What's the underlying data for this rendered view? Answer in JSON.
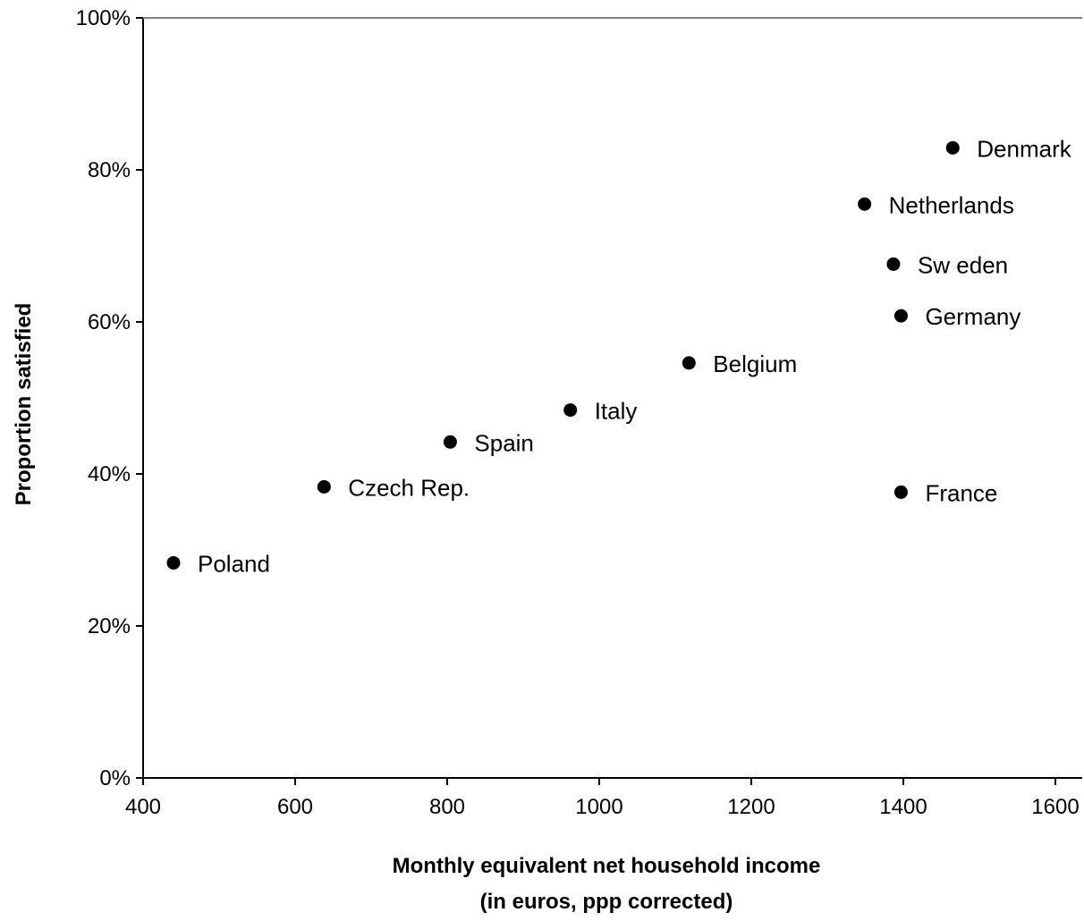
{
  "chart_data": {
    "type": "scatter",
    "xlabel_lines": [
      "Monthly equivalent net household  income",
      "(in euros, ppp corrected)"
    ],
    "ylabel": "Proportion satisfied",
    "xlim": [
      400,
      1600
    ],
    "ylim": [
      0,
      100
    ],
    "x_ticks": [
      400,
      600,
      800,
      1000,
      1200,
      1400,
      1600
    ],
    "y_ticks": [
      0,
      20,
      40,
      60,
      80,
      100
    ],
    "x_tick_labels": [
      "400",
      "600",
      "800",
      "1000",
      "1200",
      "1400",
      "1600"
    ],
    "y_tick_labels": [
      "0%",
      "20%",
      "40%",
      "60%",
      "80%",
      "100%"
    ],
    "grid": false,
    "legend": "none",
    "colors": {
      "marker": "#000000",
      "axis": "#000000",
      "frame_top": "#808080"
    },
    "points": [
      {
        "label": "Poland",
        "x": 440,
        "y": 28.3
      },
      {
        "label": "Czech Rep.",
        "x": 638,
        "y": 38.3
      },
      {
        "label": "Spain",
        "x": 804,
        "y": 44.2
      },
      {
        "label": "Italy",
        "x": 962,
        "y": 48.4
      },
      {
        "label": "Belgium",
        "x": 1118,
        "y": 54.6
      },
      {
        "label": "France",
        "x": 1397,
        "y": 37.6
      },
      {
        "label": "Germany",
        "x": 1397,
        "y": 60.8
      },
      {
        "label": "Sw eden",
        "x": 1387,
        "y": 67.6
      },
      {
        "label": "Netherlands",
        "x": 1349,
        "y": 75.5
      },
      {
        "label": "Denmark",
        "x": 1465,
        "y": 82.9
      }
    ]
  }
}
